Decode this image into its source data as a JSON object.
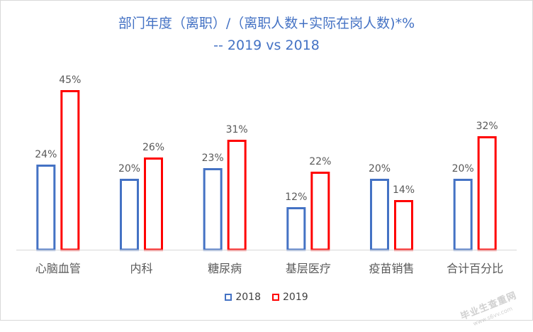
{
  "chart_data": {
    "type": "bar",
    "title": "部门年度（离职）/（离职人数+实际在岗人数)*%",
    "subtitle": "-- 2019 vs 2018",
    "categories": [
      "心脑血管",
      "内科",
      "糖尿病",
      "基层医疗",
      "疫苗销售",
      "合计百分比"
    ],
    "series": [
      {
        "name": "2018",
        "values": [
          24,
          20,
          23,
          12,
          20,
          20
        ],
        "labels": [
          "24%",
          "20%",
          "23%",
          "12%",
          "20%",
          "20%"
        ],
        "color": "#4472c4"
      },
      {
        "name": "2019",
        "values": [
          45,
          26,
          31,
          22,
          14,
          32
        ],
        "labels": [
          "45%",
          "26%",
          "31%",
          "22%",
          "14%",
          "32%"
        ],
        "color": "#ff0000"
      }
    ],
    "ylim": [
      0,
      48
    ],
    "grid": false,
    "legend": "bottom-center",
    "xlabel": "",
    "ylabel": ""
  },
  "watermark": {
    "text": "毕业生查重网",
    "url": "www.s6vv.com"
  },
  "colors": {
    "axis": "#d9d9d9",
    "label_text": "#595959",
    "title_text": "#4472c4"
  }
}
